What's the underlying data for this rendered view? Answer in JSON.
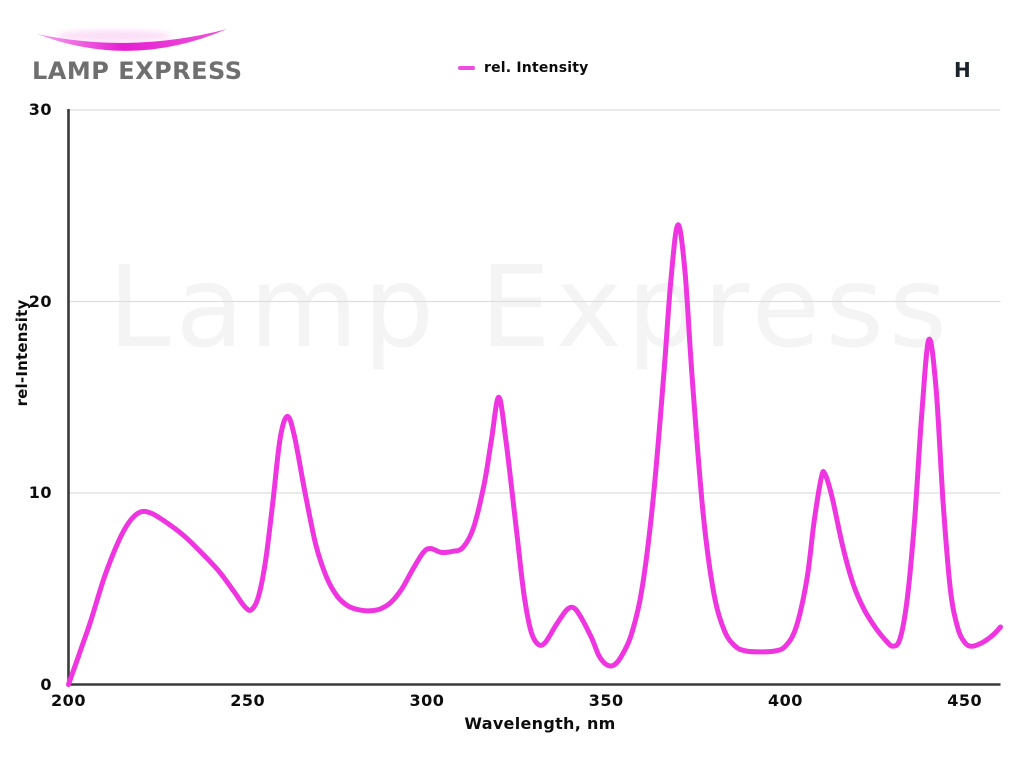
{
  "header": {
    "brand": "LAMP EXPRESS",
    "corner_mark": "H",
    "legend": {
      "label": "rel. Intensity",
      "color": "#ee4ce0"
    }
  },
  "watermark": "Lamp Express",
  "chart_data": {
    "type": "line",
    "title": "",
    "xlabel": "Wavelength, nm",
    "ylabel": "rel-Intensity",
    "xlim": [
      200,
      460
    ],
    "ylim": [
      0,
      30
    ],
    "x_ticks": [
      200,
      250,
      300,
      350,
      400,
      450
    ],
    "y_ticks": [
      0,
      10,
      20,
      30
    ],
    "grid": "horizontal-only",
    "legend_position": "top-center",
    "line_color": "#ee35e0",
    "axis_color": "#3a3a3a",
    "grid_color": "#dedede",
    "series": [
      {
        "name": "rel. Intensity",
        "points": [
          [
            200,
            0
          ],
          [
            203,
            1.6
          ],
          [
            206,
            3.2
          ],
          [
            210,
            5.6
          ],
          [
            214,
            7.5
          ],
          [
            217,
            8.5
          ],
          [
            220,
            9.0
          ],
          [
            223,
            8.95
          ],
          [
            227,
            8.5
          ],
          [
            232,
            7.8
          ],
          [
            237,
            6.9
          ],
          [
            242,
            5.9
          ],
          [
            246,
            4.9
          ],
          [
            249,
            4.1
          ],
          [
            251,
            3.9
          ],
          [
            253,
            4.6
          ],
          [
            255,
            6.5
          ],
          [
            257,
            9.5
          ],
          [
            259,
            12.8
          ],
          [
            261,
            14.0
          ],
          [
            263,
            13.0
          ],
          [
            266,
            10.0
          ],
          [
            269,
            7.3
          ],
          [
            272,
            5.6
          ],
          [
            275,
            4.6
          ],
          [
            278,
            4.1
          ],
          [
            281,
            3.9
          ],
          [
            284,
            3.85
          ],
          [
            287,
            3.95
          ],
          [
            290,
            4.3
          ],
          [
            293,
            5.0
          ],
          [
            296,
            6.0
          ],
          [
            299,
            6.9
          ],
          [
            301,
            7.1
          ],
          [
            304,
            6.9
          ],
          [
            307,
            6.95
          ],
          [
            310,
            7.15
          ],
          [
            313,
            8.2
          ],
          [
            316,
            10.5
          ],
          [
            318,
            12.8
          ],
          [
            320,
            15.0
          ],
          [
            322,
            12.8
          ],
          [
            325,
            8.0
          ],
          [
            327,
            4.8
          ],
          [
            329,
            2.8
          ],
          [
            331,
            2.1
          ],
          [
            333,
            2.2
          ],
          [
            336,
            3.1
          ],
          [
            339,
            3.9
          ],
          [
            341,
            4.0
          ],
          [
            343,
            3.5
          ],
          [
            346,
            2.4
          ],
          [
            348,
            1.5
          ],
          [
            350,
            1.05
          ],
          [
            352,
            1.0
          ],
          [
            354,
            1.4
          ],
          [
            357,
            2.6
          ],
          [
            360,
            5.0
          ],
          [
            363,
            9.5
          ],
          [
            366,
            16.0
          ],
          [
            368,
            21.0
          ],
          [
            370,
            24.0
          ],
          [
            372,
            21.5
          ],
          [
            374,
            16.0
          ],
          [
            377,
            9.0
          ],
          [
            380,
            4.8
          ],
          [
            383,
            2.8
          ],
          [
            386,
            2.0
          ],
          [
            389,
            1.75
          ],
          [
            393,
            1.7
          ],
          [
            397,
            1.75
          ],
          [
            400,
            2.0
          ],
          [
            403,
            3.0
          ],
          [
            406,
            5.5
          ],
          [
            408,
            8.5
          ],
          [
            410,
            10.8
          ],
          [
            411,
            11.0
          ],
          [
            413,
            9.8
          ],
          [
            416,
            7.2
          ],
          [
            419,
            5.2
          ],
          [
            422,
            3.9
          ],
          [
            425,
            3.0
          ],
          [
            428,
            2.3
          ],
          [
            430,
            2.0
          ],
          [
            432,
            2.4
          ],
          [
            434,
            4.5
          ],
          [
            436,
            8.5
          ],
          [
            438,
            14.0
          ],
          [
            440,
            18.0
          ],
          [
            442,
            15.5
          ],
          [
            444,
            9.5
          ],
          [
            446,
            5.0
          ],
          [
            448,
            3.0
          ],
          [
            450,
            2.2
          ],
          [
            452,
            2.0
          ],
          [
            455,
            2.2
          ],
          [
            458,
            2.6
          ],
          [
            460,
            3.0
          ]
        ]
      }
    ]
  }
}
